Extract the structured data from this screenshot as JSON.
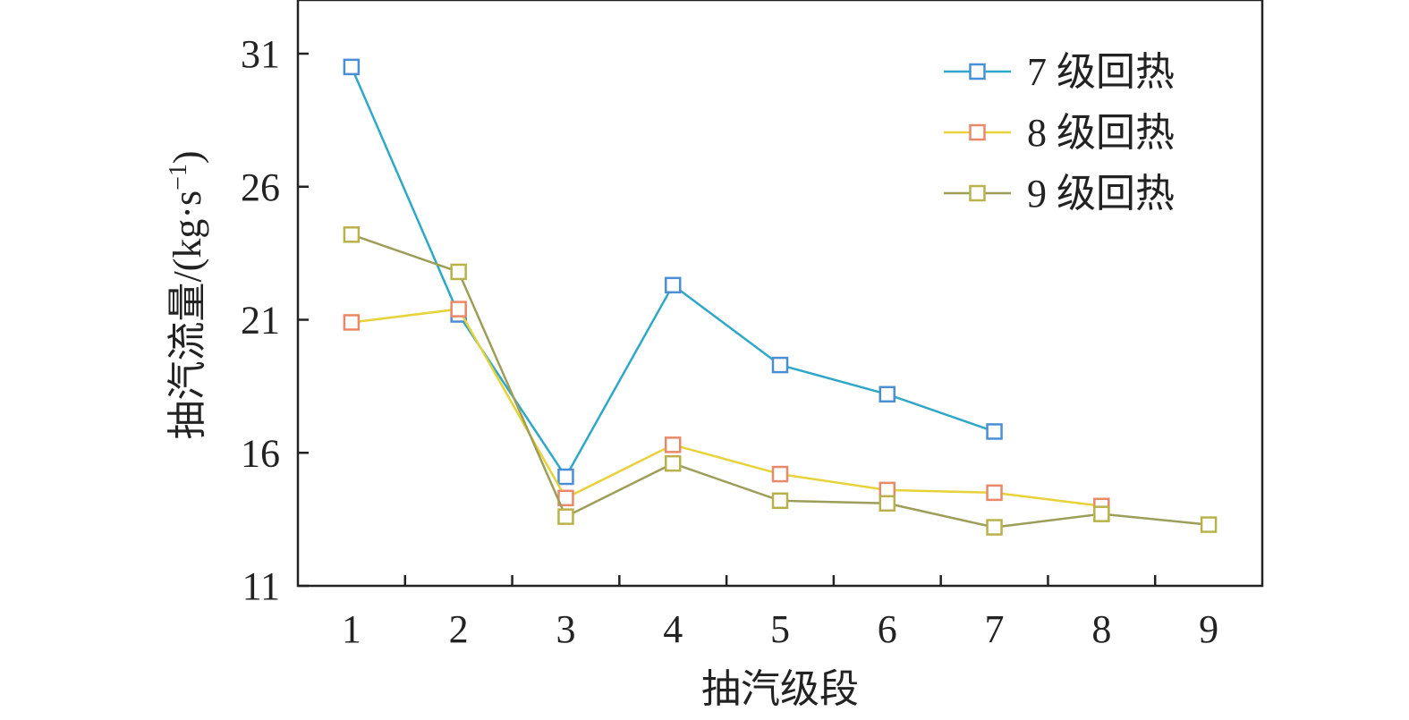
{
  "chart_data": {
    "type": "line",
    "title": "",
    "xlabel": "抽汽级段",
    "ylabel": "抽汽流量/(kg·s",
    "ylabel_sup": "−1",
    "ylabel_close": ")",
    "ylim": [
      11,
      31
    ],
    "yticks": [
      11,
      16,
      21,
      26,
      31
    ],
    "xlim": [
      0.5,
      9.5
    ],
    "xticks": [
      1,
      2,
      3,
      4,
      5,
      6,
      7,
      8,
      9
    ],
    "grid": false,
    "legend_position": "top-right",
    "marker": "square",
    "series": [
      {
        "name": "7 级回热",
        "color": "#2fa8c8",
        "marker_color": "#4a8fd6",
        "x": [
          1,
          2,
          3,
          4,
          5,
          6,
          7
        ],
        "y": [
          30.5,
          21.2,
          15.1,
          22.3,
          19.3,
          18.2,
          16.8
        ]
      },
      {
        "name": "8 级回热",
        "color": "#e8d23a",
        "marker_color": "#e8896a",
        "x": [
          1,
          2,
          3,
          4,
          5,
          6,
          7,
          8
        ],
        "y": [
          20.9,
          21.4,
          14.3,
          16.3,
          15.2,
          14.6,
          14.5,
          14.0
        ]
      },
      {
        "name": "9 级回热",
        "color": "#9c9e5a",
        "marker_color": "#b9b24a",
        "x": [
          1,
          2,
          3,
          4,
          5,
          6,
          7,
          8,
          9
        ],
        "y": [
          24.2,
          22.8,
          13.6,
          15.6,
          14.2,
          14.1,
          13.2,
          13.7,
          13.3
        ]
      }
    ]
  }
}
